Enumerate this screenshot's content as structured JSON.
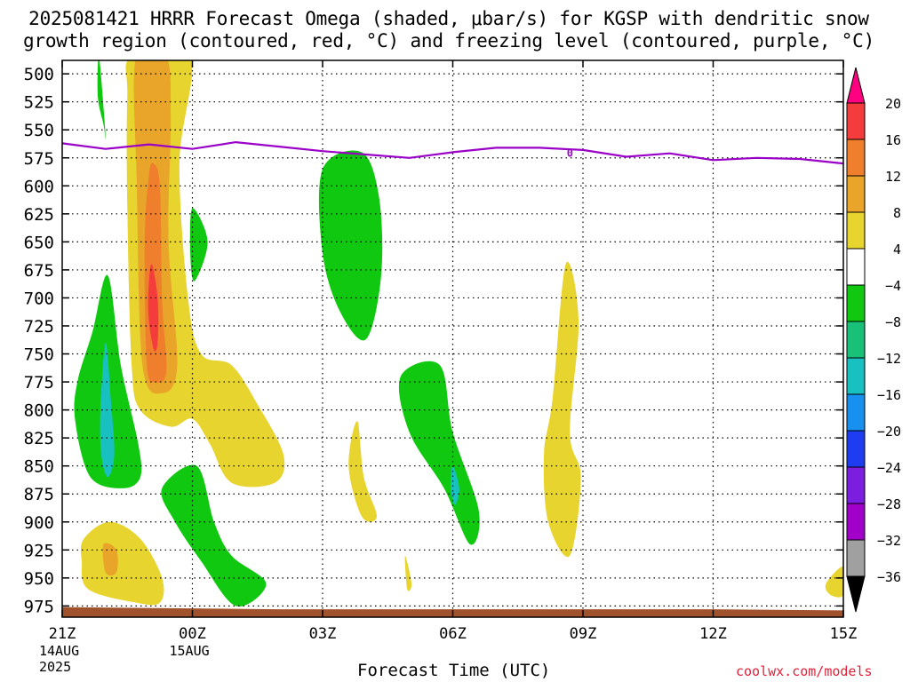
{
  "title_line1": "2025081421 HRRR Forecast Omega (shaded, μbar/s) for KGSP with dendritic snow",
  "title_line2": "growth region (contoured, red, °C) and freezing level (contoured, purple, °C)",
  "credit": "coolwx.com/models",
  "chart_data": {
    "type": "contour-timeheight",
    "title": "2025081421 HRRR Forecast Omega (shaded, μbar/s) for KGSP with dendritic snow growth region (contoured, red, °C) and freezing level (contoured, purple, °C)",
    "xlabel": "Forecast Time (UTC)",
    "ylabel": "",
    "x_unit": "forecast hour",
    "xlim": [
      0,
      18
    ],
    "ylim": [
      985,
      488
    ],
    "y_ticks": [
      500,
      525,
      550,
      575,
      600,
      625,
      650,
      675,
      700,
      725,
      750,
      775,
      800,
      825,
      850,
      875,
      900,
      925,
      950,
      975
    ],
    "x_ticks": [
      {
        "hour": 0,
        "label": "21Z",
        "sub": [
          "14AUG",
          "2025"
        ]
      },
      {
        "hour": 3,
        "label": "00Z",
        "sub": [
          "15AUG"
        ]
      },
      {
        "hour": 6,
        "label": "03Z",
        "sub": []
      },
      {
        "hour": 9,
        "label": "06Z",
        "sub": []
      },
      {
        "hour": 12,
        "label": "09Z",
        "sub": []
      },
      {
        "hour": 15,
        "label": "12Z",
        "sub": []
      },
      {
        "hour": 18,
        "label": "15Z",
        "sub": []
      }
    ],
    "grid": true,
    "colorbar": {
      "levels": [
        "20",
        "16",
        "12",
        "8",
        "4",
        "−4",
        "−8",
        "−12",
        "−16",
        "−20",
        "−24",
        "−28",
        "−32",
        "−36"
      ],
      "colors": [
        "#ff0080",
        "#f43c3c",
        "#ef7f2c",
        "#e8a52a",
        "#e8d42e",
        "#ffffff",
        "#10c810",
        "#18c078",
        "#18c0c0",
        "#1890f0",
        "#1e3cf0",
        "#7c1ee0",
        "#a000c8",
        "#a0a0a0",
        "#000000"
      ]
    },
    "freezing_level": {
      "color": "#9a00c8",
      "label": "0",
      "points": [
        [
          0,
          562
        ],
        [
          1,
          567
        ],
        [
          2,
          563
        ],
        [
          3,
          567
        ],
        [
          4,
          561
        ],
        [
          5,
          565
        ],
        [
          6,
          569
        ],
        [
          7,
          572
        ],
        [
          8,
          575
        ],
        [
          9,
          570
        ],
        [
          10,
          566
        ],
        [
          11,
          566
        ],
        [
          12,
          568
        ],
        [
          13,
          574
        ],
        [
          14,
          571
        ],
        [
          15,
          577
        ],
        [
          16,
          575
        ],
        [
          17,
          576
        ],
        [
          18,
          580
        ]
      ]
    },
    "omega_regions": [
      {
        "value": -4,
        "color": "#10c810",
        "points": [
          [
            0.85,
            485
          ],
          [
            1.0,
            555
          ],
          [
            0.95,
            545
          ],
          [
            0.82,
            520
          ]
        ]
      },
      {
        "value": 4,
        "color": "#e8d42e",
        "points": [
          [
            1.6,
            485
          ],
          [
            2.95,
            485
          ],
          [
            2.7,
            580
          ],
          [
            2.9,
            700
          ],
          [
            3.2,
            750
          ],
          [
            3.9,
            760
          ],
          [
            4.5,
            795
          ],
          [
            5.1,
            840
          ],
          [
            4.9,
            865
          ],
          [
            3.9,
            865
          ],
          [
            3.4,
            830
          ],
          [
            3.0,
            808
          ],
          [
            2.5,
            815
          ],
          [
            1.8,
            800
          ],
          [
            1.6,
            760
          ],
          [
            1.5,
            620
          ],
          [
            1.5,
            520
          ]
        ]
      },
      {
        "value": 8,
        "color": "#e8a52a",
        "points": [
          [
            1.7,
            485
          ],
          [
            2.4,
            485
          ],
          [
            2.5,
            540
          ],
          [
            2.45,
            650
          ],
          [
            2.65,
            760
          ],
          [
            2.3,
            785
          ],
          [
            1.85,
            760
          ],
          [
            1.72,
            600
          ]
        ]
      },
      {
        "value": 12,
        "color": "#ef7f2c",
        "points": [
          [
            2.1,
            580
          ],
          [
            2.25,
            600
          ],
          [
            2.3,
            700
          ],
          [
            2.4,
            765
          ],
          [
            2.15,
            775
          ],
          [
            1.95,
            760
          ],
          [
            1.9,
            650
          ],
          [
            2.0,
            590
          ]
        ]
      },
      {
        "value": 16,
        "color": "#f43c3c",
        "points": [
          [
            2.05,
            670
          ],
          [
            2.2,
            700
          ],
          [
            2.2,
            740
          ],
          [
            2.1,
            745
          ],
          [
            1.98,
            710
          ]
        ]
      },
      {
        "value": -4,
        "color": "#10c810",
        "points": [
          [
            1.05,
            680
          ],
          [
            1.35,
            760
          ],
          [
            1.75,
            830
          ],
          [
            1.8,
            860
          ],
          [
            1.4,
            870
          ],
          [
            0.65,
            860
          ],
          [
            0.3,
            810
          ],
          [
            0.35,
            775
          ],
          [
            0.7,
            730
          ]
        ]
      },
      {
        "value": -12,
        "color": "#18c0c0",
        "points": [
          [
            1.0,
            740
          ],
          [
            1.12,
            790
          ],
          [
            1.2,
            840
          ],
          [
            1.05,
            860
          ],
          [
            0.9,
            840
          ],
          [
            0.88,
            800
          ]
        ]
      },
      {
        "value": -4,
        "color": "#10c810",
        "points": [
          [
            3.0,
            620
          ],
          [
            3.35,
            650
          ],
          [
            3.05,
            685
          ],
          [
            2.95,
            660
          ]
        ]
      },
      {
        "value": -4,
        "color": "#10c810",
        "points": [
          [
            6.0,
            585
          ],
          [
            6.9,
            570
          ],
          [
            7.3,
            610
          ],
          [
            7.35,
            680
          ],
          [
            7.0,
            737
          ],
          [
            6.4,
            712
          ],
          [
            6.0,
            660
          ]
        ]
      },
      {
        "value": 4,
        "color": "#e8d42e",
        "points": [
          [
            6.8,
            810
          ],
          [
            6.95,
            860
          ],
          [
            7.25,
            895
          ],
          [
            6.9,
            895
          ],
          [
            6.6,
            850
          ]
        ]
      },
      {
        "value": 4,
        "color": "#e8d42e",
        "points": [
          [
            7.9,
            930
          ],
          [
            8.05,
            955
          ],
          [
            7.95,
            960
          ]
        ]
      },
      {
        "value": -4,
        "color": "#10c810",
        "points": [
          [
            7.8,
            770
          ],
          [
            8.7,
            760
          ],
          [
            9.0,
            820
          ],
          [
            9.6,
            890
          ],
          [
            9.4,
            920
          ],
          [
            8.8,
            870
          ],
          [
            8.0,
            820
          ]
        ]
      },
      {
        "value": -12,
        "color": "#18c0c0",
        "points": [
          [
            9.0,
            850
          ],
          [
            9.15,
            870
          ],
          [
            9.05,
            885
          ],
          [
            8.95,
            870
          ]
        ]
      },
      {
        "value": 4,
        "color": "#e8d42e",
        "points": [
          [
            11.6,
            670
          ],
          [
            11.9,
            720
          ],
          [
            11.7,
            820
          ],
          [
            11.95,
            860
          ],
          [
            11.7,
            930
          ],
          [
            11.2,
            900
          ],
          [
            11.1,
            840
          ],
          [
            11.3,
            790
          ]
        ]
      },
      {
        "value": -4,
        "color": "#10c810",
        "points": [
          [
            2.3,
            870
          ],
          [
            3.1,
            850
          ],
          [
            3.5,
            900
          ],
          [
            3.9,
            930
          ],
          [
            4.7,
            955
          ],
          [
            4.0,
            975
          ],
          [
            3.2,
            935
          ],
          [
            2.6,
            900
          ]
        ]
      },
      {
        "value": 4,
        "color": "#e8d42e",
        "points": [
          [
            0.5,
            915
          ],
          [
            1.1,
            900
          ],
          [
            1.8,
            915
          ],
          [
            2.3,
            950
          ],
          [
            2.25,
            972
          ],
          [
            1.7,
            972
          ],
          [
            0.6,
            960
          ],
          [
            0.45,
            935
          ]
        ]
      },
      {
        "value": 8,
        "color": "#e8a52a",
        "points": [
          [
            0.95,
            920
          ],
          [
            1.25,
            925
          ],
          [
            1.25,
            945
          ],
          [
            1.0,
            945
          ]
        ]
      },
      {
        "value": 4,
        "color": "#e8d42e",
        "points": [
          [
            17.6,
            955
          ],
          [
            18.0,
            940
          ],
          [
            18.0,
            965
          ],
          [
            17.7,
            965
          ]
        ]
      }
    ]
  }
}
